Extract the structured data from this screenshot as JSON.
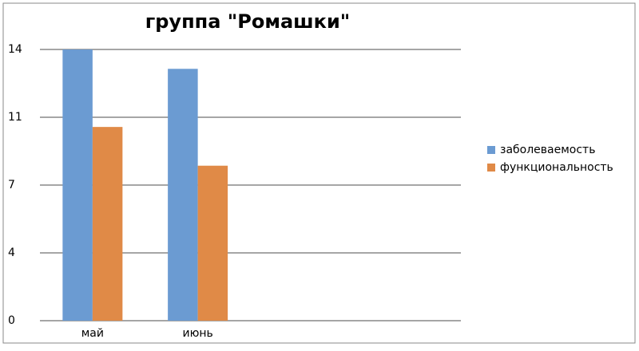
{
  "chart_data": {
    "type": "bar",
    "title": "группа \"Ромашки\"",
    "categories": [
      "май",
      "июнь",
      null,
      null
    ],
    "series": [
      {
        "name": "заболеваемость",
        "color": "#6b9bd2",
        "values": [
          14,
          13,
          null,
          null
        ]
      },
      {
        "name": "функциональность",
        "color": "#e08a47",
        "values": [
          10,
          8,
          null,
          null
        ]
      }
    ],
    "ylim": [
      0,
      14
    ],
    "yticks": [
      0,
      {
        "value": 3.5,
        "label": "4"
      },
      7,
      {
        "value": 10.5,
        "label": "11"
      },
      14
    ],
    "grid": true,
    "legend": "right"
  }
}
